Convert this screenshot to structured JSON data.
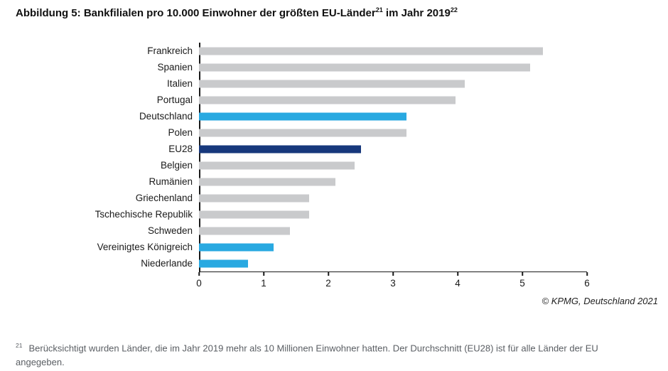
{
  "header": {
    "title_main": "Abbildung 5: Bankfilialen pro 10.000 Einwohner der größten EU-Länder",
    "footnote_ref_1": "21",
    "title_tail": " im Jahr 2019",
    "footnote_ref_2": "22"
  },
  "source": "© KPMG, Deutschland 2021",
  "footnote": {
    "ref": "21",
    "text": "Berücksichtigt wurden Länder, die im Jahr 2019 mehr als 10 Millionen Einwohner hatten. Der Durchschnitt (EU28) ist für alle Länder der EU angegeben."
  },
  "chart_data": {
    "type": "bar",
    "orientation": "horizontal",
    "title": "Abbildung 5: Bankfilialen pro 10.000 Einwohner der größten EU-Länder im Jahr 2019",
    "categories": [
      "Frankreich",
      "Spanien",
      "Italien",
      "Portugal",
      "Deutschland",
      "Polen",
      "EU28",
      "Belgien",
      "Rumänien",
      "Griechenland",
      "Tschechische Republik",
      "Schweden",
      "Vereinigtes Königreich",
      "Niederlande"
    ],
    "values": [
      5.3,
      5.1,
      4.1,
      3.95,
      3.2,
      3.2,
      2.5,
      2.4,
      2.1,
      1.7,
      1.7,
      1.4,
      1.15,
      0.75
    ],
    "bar_color_keys": [
      "gray",
      "gray",
      "gray",
      "gray",
      "highlight",
      "gray",
      "accent",
      "gray",
      "gray",
      "gray",
      "gray",
      "gray",
      "highlight",
      "highlight"
    ],
    "palette": {
      "gray": "#c9cacc",
      "highlight": "#29a9e1",
      "accent": "#17387c"
    },
    "xlabel": "",
    "ylabel": "",
    "xlim": [
      0,
      6
    ],
    "xticks": [
      0,
      1,
      2,
      3,
      4,
      5,
      6
    ],
    "grid": false,
    "legend": "none"
  }
}
